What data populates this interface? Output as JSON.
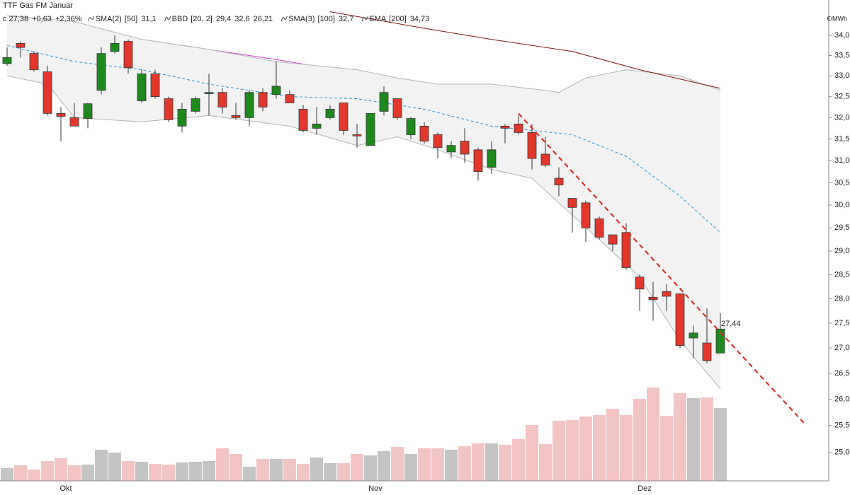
{
  "chart_data": {
    "type": "candlestick",
    "title": "TTF Gas FM Januar",
    "unit": "€/MWh",
    "last": "c 27,38",
    "change": "+0,63",
    "change_pct": "+2,36%",
    "log_scale": true,
    "up_color": "#1e8a1e",
    "down_color": "#e2382c",
    "categories": [
      null,
      null,
      null,
      null,
      "Okt",
      null,
      null,
      null,
      null,
      null,
      null,
      null,
      null,
      null,
      null,
      null,
      null,
      null,
      null,
      null,
      null,
      null,
      null,
      null,
      null,
      null,
      null,
      "Nov",
      null,
      null,
      null,
      null,
      null,
      null,
      null,
      null,
      null,
      null,
      null,
      null,
      null,
      null,
      null,
      null,
      null,
      null,
      null,
      "Dez",
      null,
      null,
      null,
      null,
      null,
      null
    ],
    "open": [
      33.3,
      33.8,
      33.55,
      33.1,
      32.1,
      32.0,
      31.98,
      32.65,
      33.6,
      33.85,
      32.4,
      33.05,
      32.45,
      31.8,
      32.15,
      32.57,
      32.6,
      32.05,
      32.0,
      32.6,
      32.55,
      32.55,
      32.2,
      31.75,
      32.0,
      32.35,
      31.6,
      31.35,
      32.15,
      32.45,
      31.6,
      31.8,
      31.6,
      31.2,
      31.45,
      31.25,
      30.85,
      31.8,
      31.85,
      31.65,
      31.15,
      30.6,
      30.15,
      30.05,
      29.7,
      29.35,
      29.4,
      28.45,
      28.03,
      28.15,
      28.1,
      27.2,
      27.1,
      26.9
    ],
    "high": [
      33.7,
      33.85,
      33.6,
      33.25,
      32.25,
      32.35,
      32.35,
      33.7,
      34.0,
      33.9,
      33.15,
      33.15,
      32.5,
      32.35,
      32.5,
      33.05,
      32.7,
      32.35,
      32.65,
      32.7,
      33.35,
      32.65,
      32.3,
      32.25,
      32.3,
      32.35,
      31.85,
      32.1,
      32.75,
      32.45,
      32.02,
      31.9,
      31.65,
      31.45,
      31.75,
      31.3,
      31.45,
      31.85,
      32.05,
      31.85,
      31.55,
      30.85,
      30.15,
      30.1,
      29.75,
      29.35,
      29.6,
      28.5,
      28.35,
      28.3,
      28.1,
      27.45,
      27.8,
      27.7
    ],
    "low": [
      33.25,
      33.45,
      33.1,
      32.05,
      31.45,
      31.8,
      31.75,
      32.55,
      33.55,
      33.05,
      32.35,
      32.45,
      31.9,
      31.65,
      32.1,
      32.05,
      32.1,
      31.95,
      31.8,
      32.15,
      32.45,
      32.35,
      31.65,
      31.6,
      31.95,
      31.6,
      31.3,
      31.35,
      32.05,
      31.95,
      31.5,
      31.4,
      31.05,
      31.05,
      30.95,
      30.55,
      30.7,
      31.4,
      31.6,
      30.8,
      30.85,
      30.2,
      29.4,
      29.2,
      29.25,
      29.0,
      28.6,
      27.75,
      27.55,
      27.75,
      27.0,
      26.8,
      26.7,
      26.9
    ],
    "close": [
      33.45,
      33.7,
      33.15,
      32.1,
      32.03,
      31.8,
      32.33,
      33.55,
      33.8,
      33.2,
      33.05,
      32.5,
      31.95,
      32.2,
      32.45,
      32.6,
      32.25,
      32.0,
      32.6,
      32.25,
      32.75,
      32.35,
      31.7,
      31.85,
      32.2,
      31.7,
      31.57,
      32.1,
      32.6,
      32.0,
      31.98,
      31.45,
      31.3,
      31.35,
      31.15,
      30.75,
      31.25,
      31.75,
      31.65,
      31.05,
      30.9,
      30.45,
      29.95,
      29.5,
      29.3,
      29.15,
      28.65,
      28.2,
      27.98,
      28.05,
      27.05,
      27.3,
      26.75,
      27.38
    ],
    "volume": {
      "up_color": "#c4c4c4",
      "down_color": "#f3c4c4",
      "ylim": [
        0,
        680
      ],
      "values": [
        18,
        22,
        16,
        28,
        32,
        22,
        23,
        44,
        40,
        28,
        27,
        24,
        23,
        26,
        27,
        28,
        46,
        38,
        20,
        31,
        31,
        31,
        24,
        33,
        25,
        25,
        38,
        36,
        42,
        48,
        38,
        46,
        46,
        44,
        49,
        53,
        53,
        51,
        59,
        79,
        52,
        85,
        86,
        91,
        93,
        102,
        93,
        116,
        132,
        92,
        124,
        117,
        118,
        103
      ]
    },
    "indicators": [
      {
        "name": "SMA(2)",
        "params": "[50]",
        "readings": [
          "31,1"
        ],
        "reading_colors": [
          "#cc44cc"
        ],
        "lines": [
          {
            "color": "#cc44cc",
            "x": [
              0,
              10,
              20,
              31,
              41,
              47,
              53
            ],
            "values": [
              34.4,
              33.9,
              33.4,
              32.8,
              32.25,
              31.8,
              31.1
            ]
          }
        ]
      },
      {
        "name": "BBD",
        "params": "[20, 2]",
        "readings": [
          "29,4",
          "32,6",
          "26,21"
        ],
        "reading_colors": [
          "#2a8fd8",
          "#aaaaaa",
          "#aaaaaa"
        ],
        "band_color": "#f2f2f2",
        "lines": [
          {
            "color": "#2a8fd8",
            "dash": true,
            "x": [
              0,
              5,
              10,
              15,
              21,
              26,
              31,
              36,
              42,
              46,
              50,
              53
            ],
            "values": [
              33.75,
              33.35,
              33.15,
              32.8,
              32.5,
              32.45,
              32.2,
              31.8,
              31.6,
              31.1,
              30.2,
              29.4
            ]
          },
          {
            "color": "#b4b4b4",
            "x": [
              0,
              5,
              10,
              15,
              20,
              26,
              29,
              32,
              36,
              40,
              41,
              43,
              46,
              50,
              53
            ],
            "values": [
              34.5,
              34.35,
              33.9,
              33.65,
              33.35,
              33.15,
              32.95,
              32.8,
              32.8,
              32.65,
              32.6,
              32.95,
              33.15,
              33.0,
              32.65
            ]
          },
          {
            "color": "#b4b4b4",
            "x": [
              0,
              3,
              5,
              10,
              15,
              21,
              26,
              29,
              32,
              36,
              39,
              41,
              44,
              47,
              50,
              53
            ],
            "values": [
              33.0,
              32.8,
              32.0,
              31.9,
              32.05,
              31.8,
              31.35,
              31.55,
              31.25,
              30.8,
              30.6,
              30.05,
              29.25,
              28.45,
              27.15,
              26.2
            ]
          }
        ]
      },
      {
        "name": "SMA(3)",
        "params": "[100]",
        "readings": [
          "32,7"
        ],
        "reading_colors": [
          "#7a1414"
        ],
        "lines": [
          {
            "color": "#7a1414",
            "x": [
              24,
              31,
              36,
              42,
              47,
              53
            ],
            "values": [
              34.6,
              34.18,
              33.9,
              33.6,
              33.15,
              32.7
            ]
          }
        ]
      },
      {
        "name": "EMA",
        "params": "[200]",
        "readings": [
          "34,73"
        ],
        "reading_colors": [
          "#1e8a1e"
        ]
      }
    ],
    "trendline": {
      "color": "#e2221c",
      "x": [
        38,
        59.2
      ],
      "values": [
        32.1,
        25.55
      ]
    },
    "annotation": {
      "text": "27,44",
      "value": 27.44,
      "color": "#e2221c"
    },
    "ylim": [
      24.48,
      34.9
    ],
    "yticks": [
      {
        "value": 25,
        "label": "25,00"
      },
      {
        "value": 25.5,
        "label": "25,50"
      },
      {
        "value": 26,
        "label": "26,00"
      },
      {
        "value": 26.5,
        "label": "26,50"
      },
      {
        "value": 27,
        "label": "27,00"
      },
      {
        "value": 27.5,
        "label": "27,50"
      },
      {
        "value": 28,
        "label": "28,00"
      },
      {
        "value": 28.5,
        "label": "28,50"
      },
      {
        "value": 29,
        "label": "29,00"
      },
      {
        "value": 29.5,
        "label": "29,50"
      },
      {
        "value": 30,
        "label": "30,00"
      },
      {
        "value": 30.5,
        "label": "30,50"
      },
      {
        "value": 31,
        "label": "31,00"
      },
      {
        "value": 31.5,
        "label": "31,50"
      },
      {
        "value": 32,
        "label": "32,00"
      },
      {
        "value": 32.5,
        "label": "32,50"
      },
      {
        "value": 33,
        "label": "33,00"
      },
      {
        "value": 33.5,
        "label": "33,50"
      },
      {
        "value": 34,
        "label": "34,00"
      }
    ]
  }
}
